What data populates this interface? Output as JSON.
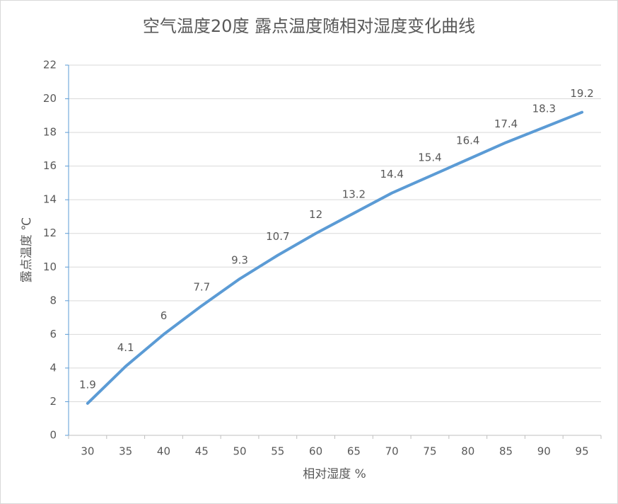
{
  "chart_data": {
    "type": "line",
    "title": "空气温度20度 露点温度随相对湿度变化曲线",
    "x_label": "相对湿度 %",
    "y_label": "露点温度 ℃",
    "categories": [
      30,
      35,
      40,
      45,
      50,
      55,
      60,
      65,
      70,
      75,
      80,
      85,
      90,
      95
    ],
    "values": [
      1.9,
      4.1,
      6,
      7.7,
      9.3,
      10.7,
      12,
      13.2,
      14.4,
      15.4,
      16.4,
      17.4,
      18.3,
      19.2
    ],
    "color": "#5b9bd5",
    "ylim": [
      0,
      22
    ],
    "yticks": [
      0,
      2,
      4,
      6,
      8,
      10,
      12,
      14,
      16,
      18,
      20,
      22
    ],
    "grid": true
  }
}
